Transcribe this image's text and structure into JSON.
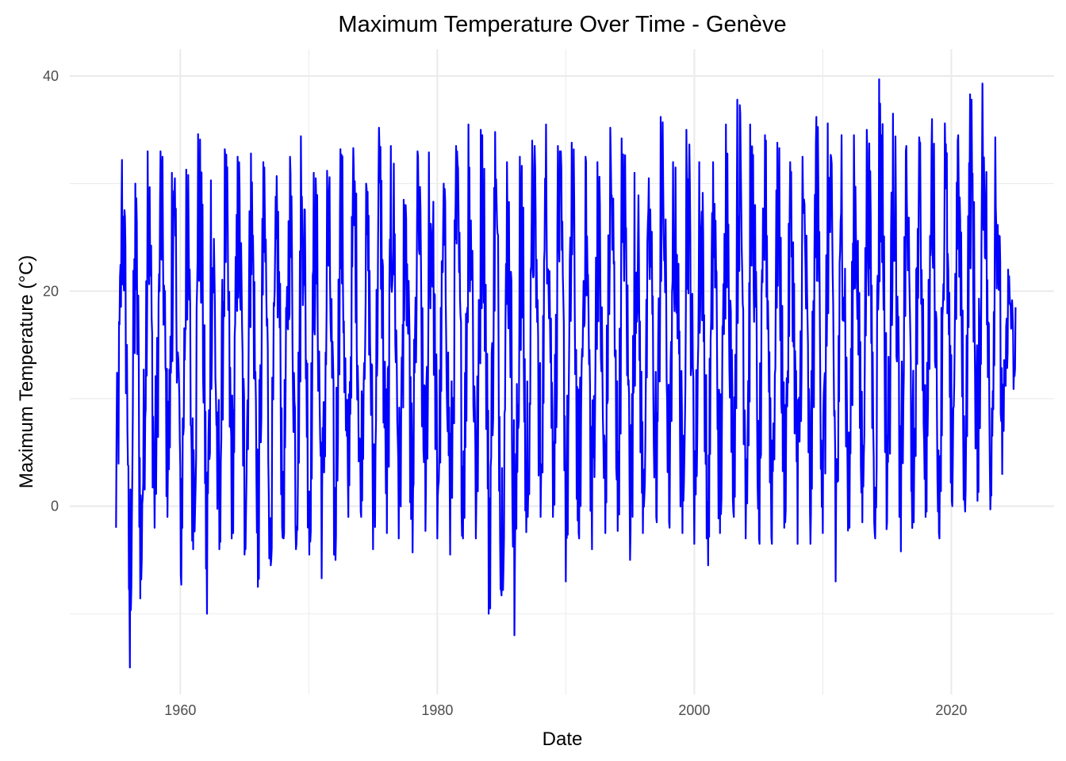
{
  "chart_data": {
    "type": "line",
    "title": "Maximum Temperature Over Time - Genève",
    "xlabel": "Date",
    "ylabel": "Maximum Temperature (°C)",
    "xlim": [
      1951.4,
      2028.0
    ],
    "ylim": [
      -17.5,
      42.5
    ],
    "x_ticks": [
      1960,
      1980,
      2000,
      2020
    ],
    "x_tick_labels": [
      "1960",
      "1980",
      "2000",
      "2020"
    ],
    "y_ticks": [
      0,
      20,
      40
    ],
    "y_tick_labels": [
      "0",
      "20",
      "40"
    ],
    "grid": true,
    "legend": "none",
    "line_color": "#0000ff",
    "series": [
      {
        "x_range": [
          1955.0,
          2025.0
        ],
        "points_per_year": 26,
        "annual_peaks": [
          32.2,
          30.0,
          33.0,
          33.0,
          31.0,
          31.3,
          34.6,
          30.3,
          33.2,
          32.5,
          32.8,
          32.0,
          30.7,
          32.5,
          34.4,
          31.0,
          31.2,
          33.2,
          33.3,
          30.0,
          35.2,
          33.5,
          28.5,
          33.0,
          32.9,
          30.0,
          33.5,
          35.5,
          35.0,
          34.8,
          32.0,
          32.5,
          34.0,
          35.5,
          33.5,
          33.8,
          32.5,
          32.0,
          35.2,
          34.2,
          31.0,
          30.5,
          36.2,
          32.0,
          35.0,
          32.0,
          32.0,
          35.5,
          37.8,
          35.5,
          34.5,
          33.8,
          32.0,
          32.5,
          36.2,
          35.6,
          34.5,
          34.5,
          35.0,
          39.7,
          36.5,
          33.5,
          34.3,
          36.0,
          35.6,
          34.5,
          38.3,
          39.3,
          34.3,
          22.0
        ],
        "annual_minima": [
          -2.0,
          -15.0,
          -5.0,
          -2.0,
          -1.0,
          -7.3,
          -4.0,
          -10.0,
          -4.0,
          -3.0,
          -4.5,
          -7.5,
          -5.5,
          -3.0,
          -4.0,
          -4.5,
          -6.7,
          -5.0,
          -1.0,
          -1.0,
          -4.0,
          -2.5,
          -3.0,
          -4.3,
          -2.3,
          -3.0,
          -4.5,
          -3.0,
          -3.0,
          -10.0,
          -8.3,
          -12.0,
          -1.0,
          -1.0,
          -1.0,
          -7.0,
          -3.0,
          -4.0,
          -2.5,
          -2.3,
          -5.0,
          -2.5,
          -1.5,
          -2.0,
          -2.5,
          -3.5,
          -5.5,
          -2.5,
          -1.0,
          -3.0,
          -3.5,
          -3.5,
          -2.0,
          -3.5,
          -3.5,
          -2.5,
          -7.0,
          -2.0,
          -1.5,
          -3.0,
          -1.5,
          -4.2,
          -1.5,
          -1.0,
          -3.0,
          0.0,
          -0.5,
          0.5,
          -0.3,
          7.0
        ],
        "end_value": 18.5
      }
    ]
  }
}
